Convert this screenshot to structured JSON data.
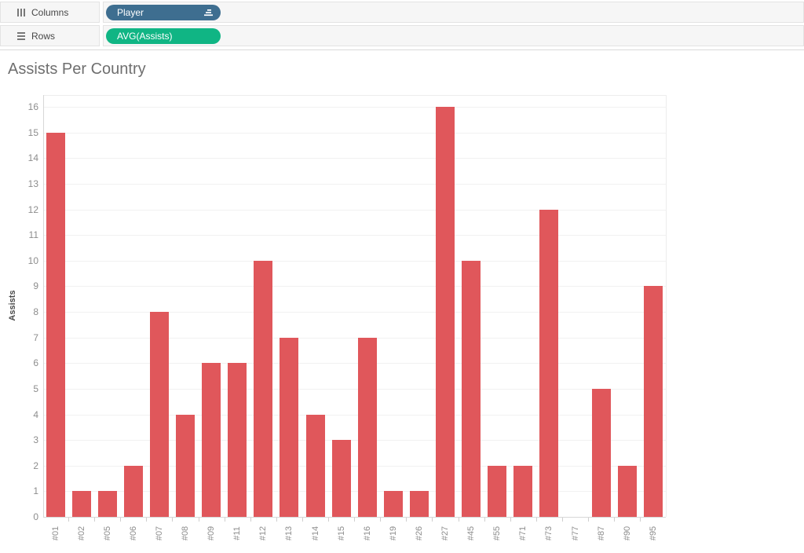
{
  "shelves": {
    "columns": {
      "label": "Columns",
      "pill": {
        "label": "Player",
        "sorted": true
      }
    },
    "rows": {
      "label": "Rows",
      "pill": {
        "label": "AVG(Assists)"
      }
    }
  },
  "colors": {
    "bar": "#e0575b",
    "dimension_pill": "#3e6e90",
    "measure_pill": "#10b584"
  },
  "chart_data": {
    "type": "bar",
    "title": "Assists Per Country",
    "xlabel": "",
    "ylabel": "Assists",
    "categories": [
      "#01",
      "#02",
      "#05",
      "#06",
      "#07",
      "#08",
      "#09",
      "#11",
      "#12",
      "#13",
      "#14",
      "#15",
      "#16",
      "#19",
      "#26",
      "#27",
      "#45",
      "#55",
      "#71",
      "#73",
      "#77",
      "#87",
      "#90",
      "#95"
    ],
    "values": [
      15,
      1,
      1,
      2,
      8,
      4,
      6,
      6,
      10,
      7,
      4,
      3,
      7,
      1,
      1,
      16,
      10,
      2,
      2,
      12,
      0,
      5,
      2,
      9
    ],
    "ylim": [
      0,
      16.5
    ],
    "yticks": [
      0,
      1,
      2,
      3,
      4,
      5,
      6,
      7,
      8,
      9,
      10,
      11,
      12,
      13,
      14,
      15,
      16
    ],
    "grid": "horizontal",
    "legend": "none",
    "bar_color": "#e0575b"
  }
}
